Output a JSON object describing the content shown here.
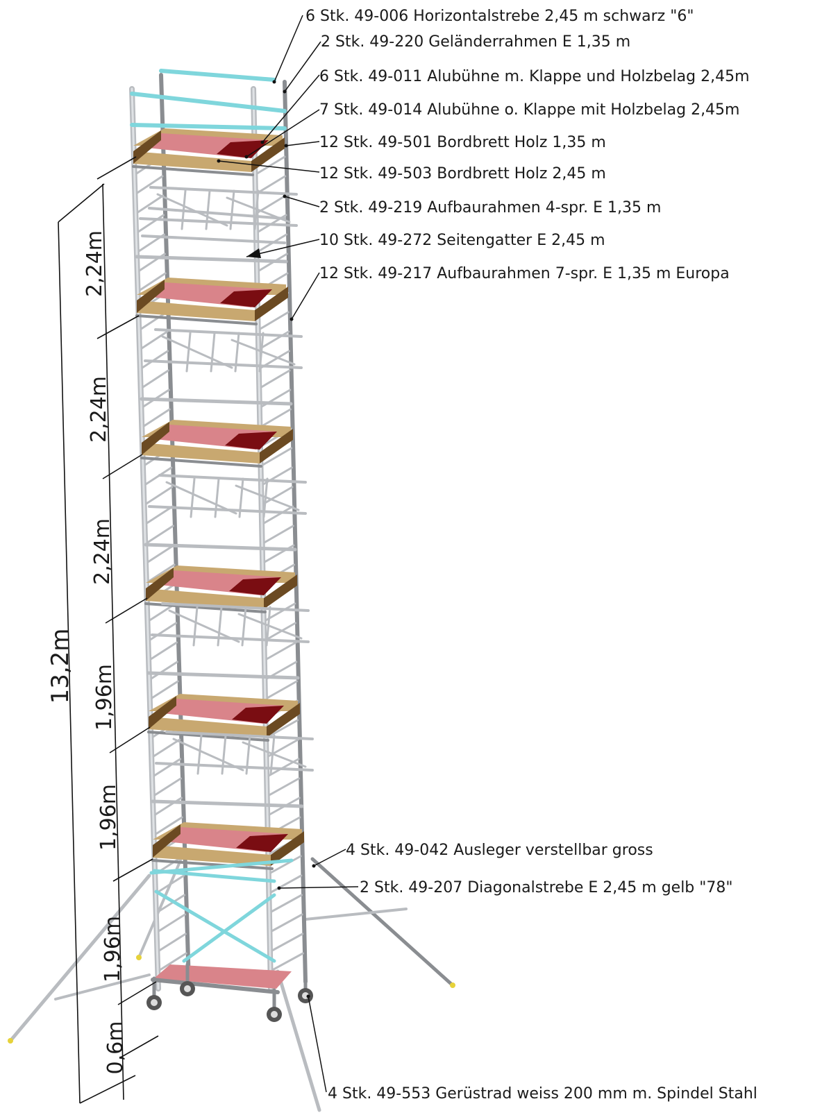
{
  "labels": [
    "6 Stk. 49-006 Horizontalstrebe 2,45 m schwarz \"6\"",
    "2 Stk. 49-220 Geländerrahmen E 1,35 m",
    "6 Stk. 49-011 Alubühne m. Klappe und Holzbelag 2,45m",
    "7 Stk. 49-014 Alubühne o. Klappe mit Holzbelag 2,45m",
    "12 Stk. 49-501 Bordbrett Holz 1,35 m",
    "12 Stk. 49-503 Bordbrett Holz 2,45 m",
    "2 Stk. 49-219 Aufbaurahmen 4-spr. E 1,35 m",
    "10 Stk. 49-272 Seitengatter E  2,45 m",
    "12 Stk. 49-217 Aufbaurahmen 7-spr. E  1,35 m Europa",
    "4 Stk. 49-042 Ausleger verstellbar gross",
    "2 Stk. 49-207 Diagonalstrebe E  2,45 m gelb \"78\"",
    "4 Stk. 49-553 Gerüstrad weiss 200 mm m. Spindel Stahl"
  ],
  "dimensions": {
    "total": "13,2m",
    "segments": [
      "2,24m",
      "2,24m",
      "2,24m",
      "1,96m",
      "1,96m",
      "1,96m",
      "0,6m"
    ]
  },
  "colors": {
    "frame": "#b9bcc0",
    "frame_dark": "#8a8d91",
    "wood": "#c8a870",
    "wood_dark": "#6b4a22",
    "deck": "#d9848a",
    "hatch": "#7a0d12",
    "cyan": "#7fd6dc",
    "line": "#111111"
  }
}
